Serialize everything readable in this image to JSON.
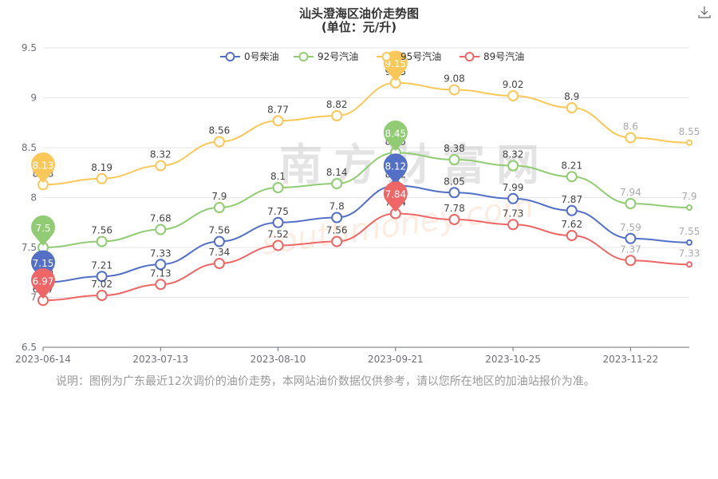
{
  "title": "汕头澄海区油价走势图",
  "subtitle": "(单位：元/升)",
  "note": "说明：图例为广东最近12次调价的油价走势，本网站油价数据仅供参考，请以您所在地区的加油站报价为准。",
  "watermark": "南方财富网",
  "watermark_url": "southmoney.com",
  "icons": {
    "download": "download-icon"
  },
  "chart_data": {
    "type": "line",
    "x_tick_labels": [
      "2023-06-14",
      "2023-07-13",
      "2023-08-10",
      "2023-09-21",
      "2023-10-25",
      "2023-11-22"
    ],
    "y_tick_labels": [
      "6.5",
      "7",
      "7.5",
      "8",
      "8.5",
      "9",
      "9.5"
    ],
    "ylim": [
      6.5,
      9.5
    ],
    "grid": true,
    "legend_position": "top-center",
    "point_count": 12,
    "tick_point_index": [
      0,
      2,
      4,
      6,
      8,
      10
    ],
    "series": [
      {
        "name": "0号柴油",
        "color": "#5470c6",
        "values": [
          7.15,
          7.21,
          7.33,
          7.56,
          7.75,
          7.8,
          8.12,
          8.05,
          7.99,
          7.87,
          7.59,
          7.55
        ],
        "value_labels": [
          "7.15",
          "7.21",
          "7.33",
          "7.56",
          "7.75",
          "7.8",
          "8.12",
          "8.05",
          "7.99",
          "7.87",
          "7.59",
          "7.55"
        ]
      },
      {
        "name": "92号汽油",
        "color": "#91cc75",
        "values": [
          7.5,
          7.56,
          7.68,
          7.9,
          8.1,
          8.14,
          8.45,
          8.38,
          8.32,
          8.21,
          7.94,
          7.9
        ],
        "value_labels": [
          "7.5",
          "7.56",
          "7.68",
          "7.9",
          "8.1",
          "8.14",
          "8.45",
          "8.38",
          "8.32",
          "8.21",
          "7.94",
          "7.9"
        ]
      },
      {
        "name": "95号汽油",
        "color": "#fac858",
        "values": [
          8.13,
          8.19,
          8.32,
          8.56,
          8.77,
          8.82,
          9.15,
          9.08,
          9.02,
          8.9,
          8.6,
          8.55
        ],
        "value_labels": [
          "8.13",
          "8.19",
          "8.32",
          "8.56",
          "8.77",
          "8.82",
          "9.15",
          "9.08",
          "9.02",
          "8.9",
          "8.6",
          "8.55"
        ]
      },
      {
        "name": "89号汽油",
        "color": "#ee6666",
        "values": [
          6.97,
          7.02,
          7.13,
          7.34,
          7.52,
          7.56,
          7.84,
          7.78,
          7.73,
          7.62,
          7.37,
          7.33
        ],
        "value_labels": [
          "6.97",
          "7.02",
          "7.13",
          "7.34",
          "7.52",
          "7.56",
          "7.84",
          "7.78",
          "7.73",
          "7.62",
          "7.37",
          "7.33"
        ]
      }
    ]
  }
}
